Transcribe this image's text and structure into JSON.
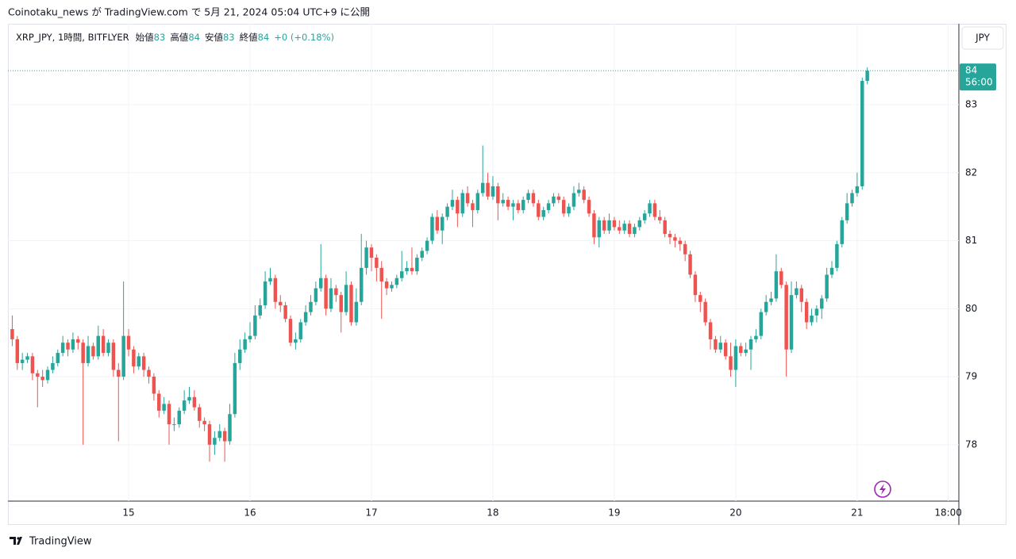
{
  "page_header": "Coinotaku_news が TradingView.com で 5月 21, 2024 05:04 UTC+9 に公開",
  "footer_logo": "TradingView",
  "currency_button": "JPY",
  "chart_data": {
    "type": "candlestick",
    "title": "XRP_JPY, 1時間, BITFLYER",
    "legend_items": [
      {
        "label": "始値",
        "value": 83
      },
      {
        "label": "高値",
        "value": 84
      },
      {
        "label": "安値",
        "value": 83
      },
      {
        "label": "終値",
        "value": 84
      }
    ],
    "change": "+0 (+0.18%)",
    "last_price": {
      "value": 83.5,
      "label": "84"
    },
    "countdown": "56:00",
    "up_color": "#26a69a",
    "down_color": "#ef5350",
    "grid": true,
    "ylim": [
      77.17,
      84.19
    ],
    "yticks": [
      78,
      79,
      80,
      81,
      82,
      83
    ],
    "xlim": [
      -0.85,
      187.1
    ],
    "xticks": [
      {
        "value": 23,
        "label": "15"
      },
      {
        "value": 47,
        "label": "16"
      },
      {
        "value": 71,
        "label": "17"
      },
      {
        "value": 95,
        "label": "18"
      },
      {
        "value": 119,
        "label": "19"
      },
      {
        "value": 143,
        "label": "20"
      },
      {
        "value": 167,
        "label": "21"
      },
      {
        "value": 185,
        "label": "18:00"
      }
    ],
    "candles": [
      [
        79.7,
        79.9,
        79.45,
        79.55
      ],
      [
        79.55,
        79.6,
        79.1,
        79.2
      ],
      [
        79.2,
        79.35,
        79.1,
        79.25
      ],
      [
        79.25,
        79.35,
        79.2,
        79.3
      ],
      [
        79.3,
        79.35,
        78.95,
        79.05
      ],
      [
        79.05,
        79.1,
        78.55,
        79.0
      ],
      [
        79.0,
        79.1,
        78.85,
        78.95
      ],
      [
        78.95,
        79.15,
        78.9,
        79.1
      ],
      [
        79.1,
        79.3,
        79.05,
        79.2
      ],
      [
        79.2,
        79.4,
        79.15,
        79.35
      ],
      [
        79.35,
        79.6,
        79.3,
        79.5
      ],
      [
        79.5,
        79.55,
        79.3,
        79.4
      ],
      [
        79.4,
        79.65,
        79.35,
        79.55
      ],
      [
        79.55,
        79.6,
        79.4,
        79.5
      ],
      [
        79.5,
        79.55,
        78.0,
        79.2
      ],
      [
        79.2,
        79.6,
        79.15,
        79.45
      ],
      [
        79.45,
        79.5,
        79.25,
        79.3
      ],
      [
        79.3,
        79.75,
        79.25,
        79.6
      ],
      [
        79.6,
        79.7,
        79.3,
        79.35
      ],
      [
        79.35,
        79.55,
        79.3,
        79.5
      ],
      [
        79.5,
        79.55,
        79.0,
        79.1
      ],
      [
        79.1,
        79.2,
        78.05,
        79.0
      ],
      [
        79.0,
        80.4,
        78.95,
        79.6
      ],
      [
        79.6,
        79.7,
        79.3,
        79.4
      ],
      [
        79.4,
        79.45,
        79.05,
        79.15
      ],
      [
        79.15,
        79.35,
        79.1,
        79.3
      ],
      [
        79.3,
        79.35,
        79.0,
        79.1
      ],
      [
        79.1,
        79.15,
        78.9,
        79.0
      ],
      [
        79.0,
        79.05,
        78.65,
        78.75
      ],
      [
        78.75,
        78.8,
        78.4,
        78.5
      ],
      [
        78.5,
        78.7,
        78.45,
        78.6
      ],
      [
        78.6,
        78.65,
        78.0,
        78.3
      ],
      [
        78.3,
        78.4,
        78.2,
        78.3
      ],
      [
        78.3,
        78.55,
        78.25,
        78.5
      ],
      [
        78.5,
        78.8,
        78.45,
        78.65
      ],
      [
        78.65,
        78.85,
        78.6,
        78.7
      ],
      [
        78.7,
        78.8,
        78.5,
        78.55
      ],
      [
        78.55,
        78.6,
        78.25,
        78.35
      ],
      [
        78.35,
        78.4,
        78.2,
        78.3
      ],
      [
        78.3,
        78.35,
        77.75,
        78.0
      ],
      [
        78.0,
        78.2,
        77.85,
        78.1
      ],
      [
        78.1,
        78.3,
        78.05,
        78.2
      ],
      [
        78.2,
        78.25,
        77.75,
        78.05
      ],
      [
        78.05,
        78.6,
        78.0,
        78.45
      ],
      [
        78.45,
        79.35,
        78.4,
        79.2
      ],
      [
        79.2,
        79.55,
        79.1,
        79.4
      ],
      [
        79.4,
        79.65,
        79.35,
        79.55
      ],
      [
        79.55,
        79.8,
        79.5,
        79.6
      ],
      [
        79.6,
        80.05,
        79.55,
        79.9
      ],
      [
        79.9,
        80.15,
        79.85,
        80.05
      ],
      [
        80.05,
        80.55,
        80.0,
        80.4
      ],
      [
        80.4,
        80.6,
        80.35,
        80.45
      ],
      [
        80.45,
        80.5,
        80.0,
        80.1
      ],
      [
        80.1,
        80.2,
        79.95,
        80.05
      ],
      [
        80.05,
        80.1,
        79.8,
        79.85
      ],
      [
        79.85,
        79.9,
        79.45,
        79.5
      ],
      [
        79.5,
        79.65,
        79.4,
        79.55
      ],
      [
        79.55,
        79.85,
        79.5,
        79.8
      ],
      [
        79.8,
        80.05,
        79.75,
        79.95
      ],
      [
        79.95,
        80.2,
        79.9,
        80.1
      ],
      [
        80.1,
        80.4,
        80.05,
        80.3
      ],
      [
        80.3,
        80.95,
        80.25,
        80.45
      ],
      [
        80.45,
        80.5,
        79.9,
        80.0
      ],
      [
        80.0,
        80.45,
        79.95,
        80.3
      ],
      [
        80.3,
        80.35,
        80.1,
        80.2
      ],
      [
        80.2,
        80.25,
        79.65,
        79.95
      ],
      [
        79.95,
        80.55,
        79.9,
        80.35
      ],
      [
        80.35,
        80.4,
        79.75,
        79.8
      ],
      [
        79.8,
        80.3,
        79.75,
        80.1
      ],
      [
        80.1,
        81.1,
        80.05,
        80.6
      ],
      [
        80.6,
        81.0,
        80.5,
        80.9
      ],
      [
        80.9,
        80.95,
        80.55,
        80.75
      ],
      [
        80.75,
        80.8,
        80.4,
        80.6
      ],
      [
        80.6,
        80.7,
        79.85,
        80.4
      ],
      [
        80.4,
        80.45,
        80.2,
        80.3
      ],
      [
        80.3,
        80.4,
        80.25,
        80.35
      ],
      [
        80.35,
        80.5,
        80.3,
        80.45
      ],
      [
        80.45,
        80.85,
        80.4,
        80.55
      ],
      [
        80.55,
        80.7,
        80.5,
        80.6
      ],
      [
        80.6,
        80.9,
        80.5,
        80.55
      ],
      [
        80.55,
        80.8,
        80.5,
        80.75
      ],
      [
        80.75,
        80.9,
        80.7,
        80.85
      ],
      [
        80.85,
        81.05,
        80.8,
        81.0
      ],
      [
        81.0,
        81.4,
        80.95,
        81.35
      ],
      [
        81.35,
        81.45,
        81.1,
        81.15
      ],
      [
        81.15,
        81.4,
        80.95,
        81.35
      ],
      [
        81.35,
        81.55,
        81.3,
        81.5
      ],
      [
        81.5,
        81.75,
        81.45,
        81.6
      ],
      [
        81.6,
        81.65,
        81.2,
        81.4
      ],
      [
        81.4,
        81.75,
        81.35,
        81.7
      ],
      [
        81.7,
        81.8,
        81.5,
        81.55
      ],
      [
        81.55,
        81.6,
        81.2,
        81.45
      ],
      [
        81.45,
        81.75,
        81.4,
        81.7
      ],
      [
        81.7,
        82.4,
        81.65,
        81.85
      ],
      [
        81.85,
        82.0,
        81.6,
        81.65
      ],
      [
        81.65,
        81.95,
        81.6,
        81.8
      ],
      [
        81.8,
        81.85,
        81.3,
        81.55
      ],
      [
        81.55,
        81.7,
        81.5,
        81.6
      ],
      [
        81.6,
        81.65,
        81.45,
        81.5
      ],
      [
        81.5,
        81.6,
        81.3,
        81.55
      ],
      [
        81.55,
        81.6,
        81.4,
        81.45
      ],
      [
        81.45,
        81.65,
        81.4,
        81.6
      ],
      [
        81.6,
        81.75,
        81.55,
        81.7
      ],
      [
        81.7,
        81.75,
        81.5,
        81.55
      ],
      [
        81.55,
        81.6,
        81.3,
        81.35
      ],
      [
        81.35,
        81.5,
        81.3,
        81.45
      ],
      [
        81.45,
        81.6,
        81.4,
        81.55
      ],
      [
        81.55,
        81.7,
        81.5,
        81.65
      ],
      [
        81.65,
        81.7,
        81.55,
        81.6
      ],
      [
        81.6,
        81.65,
        81.35,
        81.4
      ],
      [
        81.4,
        81.55,
        81.35,
        81.5
      ],
      [
        81.5,
        81.8,
        81.45,
        81.7
      ],
      [
        81.7,
        81.85,
        81.65,
        81.75
      ],
      [
        81.75,
        81.8,
        81.55,
        81.6
      ],
      [
        81.6,
        81.65,
        81.35,
        81.4
      ],
      [
        81.4,
        81.45,
        80.95,
        81.05
      ],
      [
        81.05,
        81.35,
        80.9,
        81.3
      ],
      [
        81.3,
        81.35,
        81.1,
        81.15
      ],
      [
        81.15,
        81.4,
        81.1,
        81.3
      ],
      [
        81.3,
        81.35,
        81.15,
        81.2
      ],
      [
        81.2,
        81.3,
        81.1,
        81.15
      ],
      [
        81.15,
        81.3,
        81.1,
        81.25
      ],
      [
        81.25,
        81.3,
        81.05,
        81.1
      ],
      [
        81.1,
        81.25,
        81.05,
        81.2
      ],
      [
        81.2,
        81.35,
        81.15,
        81.3
      ],
      [
        81.3,
        81.45,
        81.25,
        81.4
      ],
      [
        81.4,
        81.6,
        81.35,
        81.55
      ],
      [
        81.55,
        81.6,
        81.3,
        81.35
      ],
      [
        81.35,
        81.45,
        81.25,
        81.3
      ],
      [
        81.3,
        81.35,
        81.05,
        81.1
      ],
      [
        81.1,
        81.15,
        80.95,
        81.05
      ],
      [
        81.05,
        81.1,
        80.9,
        81.0
      ],
      [
        81.0,
        81.05,
        80.85,
        80.95
      ],
      [
        80.95,
        81.0,
        80.7,
        80.8
      ],
      [
        80.8,
        80.85,
        80.45,
        80.5
      ],
      [
        80.5,
        80.55,
        80.1,
        80.2
      ],
      [
        80.2,
        80.25,
        79.95,
        80.1
      ],
      [
        80.1,
        80.15,
        79.75,
        79.8
      ],
      [
        79.8,
        79.85,
        79.4,
        79.55
      ],
      [
        79.55,
        79.6,
        79.35,
        79.4
      ],
      [
        79.4,
        79.6,
        79.35,
        79.5
      ],
      [
        79.5,
        79.55,
        79.25,
        79.3
      ],
      [
        79.3,
        79.5,
        79.0,
        79.1
      ],
      [
        79.1,
        79.55,
        78.85,
        79.45
      ],
      [
        79.45,
        79.5,
        79.3,
        79.35
      ],
      [
        79.35,
        79.5,
        79.3,
        79.4
      ],
      [
        79.4,
        79.6,
        79.1,
        79.55
      ],
      [
        79.55,
        79.7,
        79.5,
        79.6
      ],
      [
        79.6,
        80.0,
        79.55,
        79.95
      ],
      [
        79.95,
        80.2,
        79.9,
        80.1
      ],
      [
        80.1,
        80.25,
        80.05,
        80.15
      ],
      [
        80.15,
        80.8,
        80.1,
        80.55
      ],
      [
        80.55,
        80.6,
        80.3,
        80.35
      ],
      [
        80.35,
        80.4,
        79.0,
        79.4
      ],
      [
        79.4,
        80.4,
        79.35,
        80.2
      ],
      [
        80.2,
        80.4,
        80.15,
        80.3
      ],
      [
        80.3,
        80.35,
        79.95,
        80.1
      ],
      [
        80.1,
        80.15,
        79.7,
        79.8
      ],
      [
        79.8,
        80.0,
        79.75,
        79.9
      ],
      [
        79.9,
        80.05,
        79.8,
        80.0
      ],
      [
        80.0,
        80.2,
        79.85,
        80.15
      ],
      [
        80.15,
        80.6,
        80.1,
        80.5
      ],
      [
        80.5,
        80.7,
        80.45,
        80.6
      ],
      [
        80.6,
        81.0,
        80.55,
        80.95
      ],
      [
        80.95,
        81.35,
        80.9,
        81.3
      ],
      [
        81.3,
        81.7,
        81.25,
        81.55
      ],
      [
        81.55,
        81.75,
        81.5,
        81.7
      ],
      [
        81.7,
        82.0,
        81.65,
        81.8
      ],
      [
        81.8,
        83.4,
        81.75,
        83.35
      ],
      [
        83.35,
        83.55,
        83.3,
        83.5
      ]
    ]
  }
}
